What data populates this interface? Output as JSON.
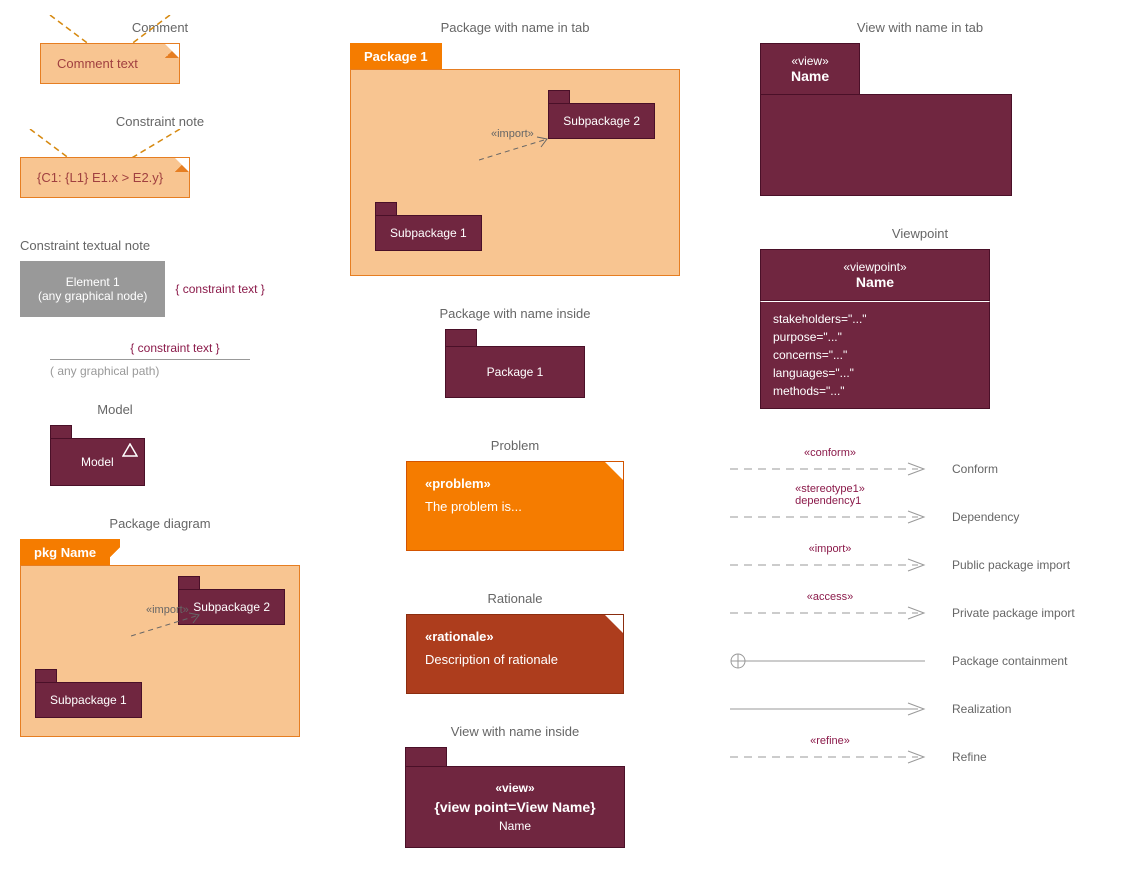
{
  "colors": {
    "light_orange": "#f8c591",
    "orange": "#f57c00",
    "dark_orange": "#e67e22",
    "maroon": "#702640",
    "dark_maroon": "#4a1028",
    "rust": "#ad3d1d",
    "gray": "#999999",
    "text_maroon": "#8b1a4a",
    "text_gray": "#666666",
    "line_dash": "#999999"
  },
  "col1": {
    "comment": {
      "title": "Comment",
      "text": "Comment text"
    },
    "constraint_note": {
      "title": "Constraint note",
      "text": "{C1: {L1} E1.x > E2.y}"
    },
    "constraint_textual": {
      "title": "Constraint textual note",
      "box_line1": "Element 1",
      "box_line2": "(any graphical node)",
      "side_text": "{ constraint text }"
    },
    "constraint_path": {
      "top": "{ constraint text }",
      "bottom": "( any graphical path)"
    },
    "model": {
      "title": "Model",
      "label": "Model"
    },
    "pkg_diagram": {
      "title": "Package diagram",
      "tab": "pkg Name",
      "sub1": "Subpackage 1",
      "sub2": "Subpackage 2",
      "import": "«import»"
    }
  },
  "col2": {
    "pkg_tab": {
      "title": "Package with name in tab",
      "tab": "Package 1",
      "sub1": "Subpackage 1",
      "sub2": "Subpackage 2",
      "import": "«import»"
    },
    "pkg_inside": {
      "title": "Package with name inside",
      "label": "Package 1"
    },
    "problem": {
      "title": "Problem",
      "stereo": "«problem»",
      "text": "The problem is..."
    },
    "rationale": {
      "title": "Rationale",
      "stereo": "«rationale»",
      "text": "Description of rationale"
    },
    "view_inside": {
      "title": "View with name inside",
      "stereo": "«view»",
      "constraint": "{view point=View Name}",
      "name": "Name"
    }
  },
  "col3": {
    "view_tab": {
      "title": "View with name in tab",
      "stereo": "«view»",
      "name": "Name"
    },
    "viewpoint": {
      "title": "Viewpoint",
      "stereo": "«viewpoint»",
      "name": "Name",
      "attrs": [
        "stakeholders=\"...\"",
        "purpose=\"...\"",
        "concerns=\"...\"",
        "languages=\"...\"",
        "methods=\"...\""
      ]
    },
    "arrows": [
      {
        "stereo": "«conform»",
        "label": "Conform",
        "dashed": true,
        "open": true
      },
      {
        "stereo": "«stereotype1»",
        "stereo2": "dependency1",
        "label": "Dependency",
        "dashed": true,
        "open": true
      },
      {
        "stereo": "«import»",
        "label": "Public package import",
        "dashed": true,
        "open": true
      },
      {
        "stereo": "«access»",
        "label": "Private package import",
        "dashed": true,
        "open": true
      },
      {
        "label": "Package containment",
        "containment": true
      },
      {
        "label": "Realization",
        "solid": true,
        "open": true
      },
      {
        "stereo": "«refine»",
        "label": "Refine",
        "dashed": true,
        "open": true
      }
    ]
  }
}
